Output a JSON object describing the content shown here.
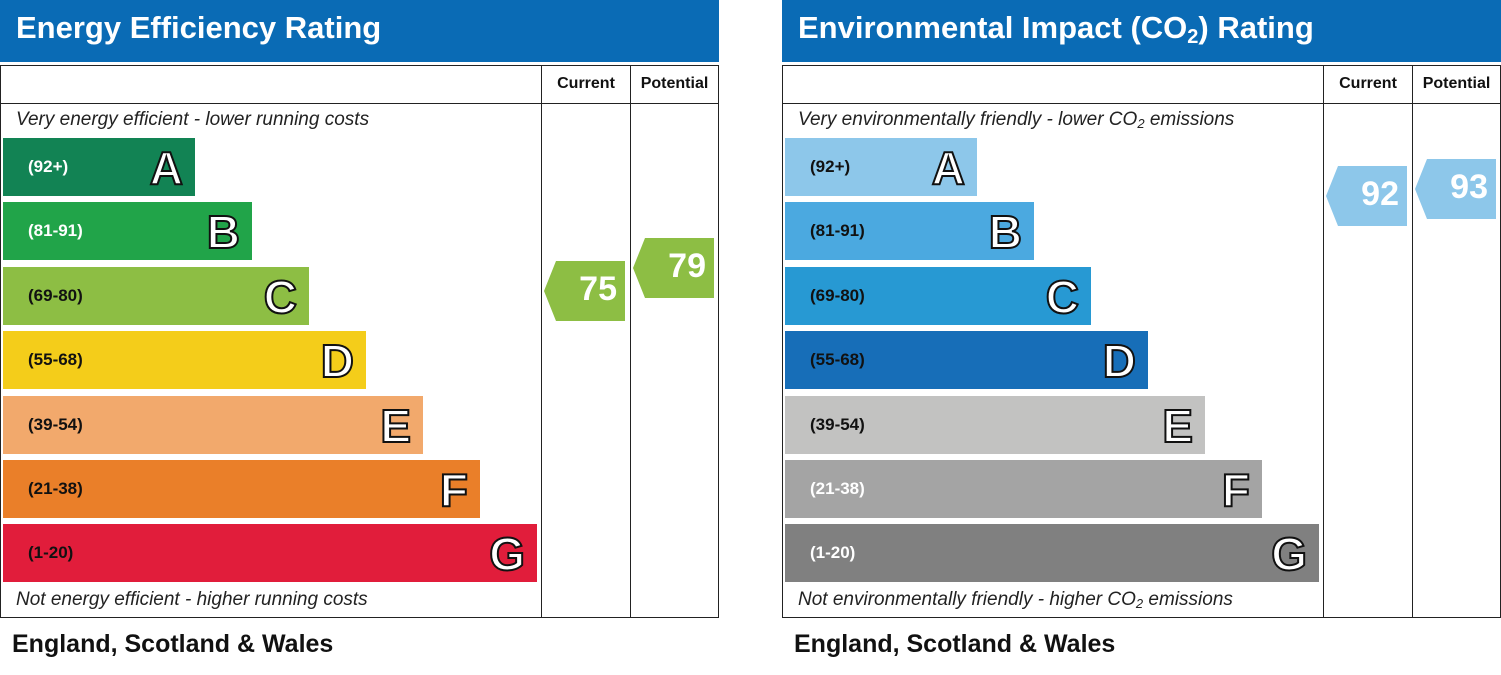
{
  "chart_data": [
    {
      "type": "bar",
      "title": "Energy Efficiency Rating",
      "title_suffix": "",
      "columns": [
        "Current",
        "Potential"
      ],
      "top_caption": "Very energy efficient - lower running costs",
      "bottom_caption": "Not energy efficient - higher running costs",
      "categories": [
        "A",
        "B",
        "C",
        "D",
        "E",
        "F",
        "G"
      ],
      "ranges": [
        "(92+)",
        "(81-91)",
        "(69-80)",
        "(55-68)",
        "(39-54)",
        "(21-38)",
        "(1-20)"
      ],
      "colors": [
        "#128354",
        "#21a449",
        "#8dbe44",
        "#f4cd1a",
        "#f2a96c",
        "#ea7f29",
        "#e11d3b"
      ],
      "range_text_colors": [
        "#ffffff",
        "#ffffff",
        "#111111",
        "#111111",
        "#111111",
        "#111111",
        "#111111"
      ],
      "current": 75,
      "potential": 79,
      "current_band": 2,
      "potential_band": 2,
      "region": "England, Scotland & Wales"
    },
    {
      "type": "bar",
      "title": "Environmental Impact (CO",
      "title_sub": "2",
      "title_suffix": ") Rating",
      "columns": [
        "Current",
        "Potential"
      ],
      "top_caption": "Very environmentally friendly - lower CO",
      "top_caption_sub": "2",
      "top_caption_suffix": " emissions",
      "bottom_caption": "Not environmentally friendly - higher CO",
      "bottom_caption_sub": "2",
      "bottom_caption_suffix": " emissions",
      "categories": [
        "A",
        "B",
        "C",
        "D",
        "E",
        "F",
        "G"
      ],
      "ranges": [
        "(92+)",
        "(81-91)",
        "(69-80)",
        "(55-68)",
        "(39-54)",
        "(21-38)",
        "(1-20)"
      ],
      "colors": [
        "#8dc7ea",
        "#4ba9e0",
        "#2799d3",
        "#176eb8",
        "#c2c2c1",
        "#a4a4a4",
        "#808080"
      ],
      "range_text_colors": [
        "#111111",
        "#111111",
        "#111111",
        "#111111",
        "#111111",
        "#ffffff",
        "#ffffff"
      ],
      "current": 92,
      "potential": 93,
      "current_band": 0,
      "potential_band": 0,
      "arrow_color": "#8dc7ea",
      "region": "England, Scotland & Wales"
    }
  ]
}
